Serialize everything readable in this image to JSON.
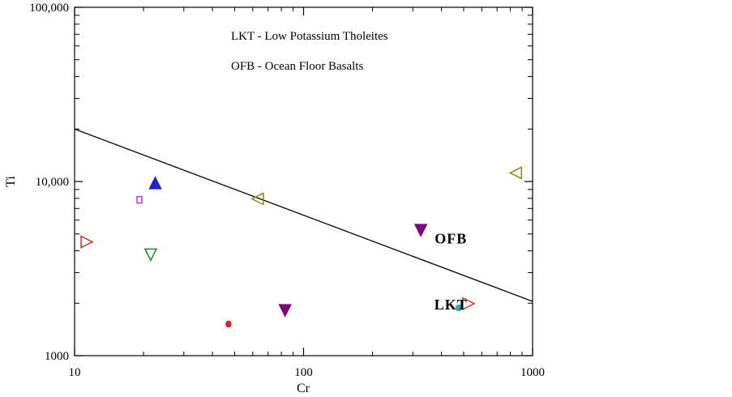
{
  "chart_data": {
    "type": "scatter",
    "title": "",
    "xlabel": "Cr",
    "ylabel": "Ti",
    "xscale": "log",
    "yscale": "log",
    "xlim": [
      10,
      1000
    ],
    "ylim": [
      1000,
      100000
    ],
    "x_ticks": [
      {
        "value": 10,
        "label": "10"
      },
      {
        "value": 100,
        "label": "100"
      },
      {
        "value": 1000,
        "label": "1000"
      }
    ],
    "y_ticks": [
      {
        "value": 1000,
        "label": "1000"
      },
      {
        "value": 10000,
        "label": "10,000"
      },
      {
        "value": 100000,
        "label": "100,000"
      }
    ],
    "legend_lines": [
      "LKT - Low Potassium Tholeites",
      "OFB - Ocean Floor Basalts"
    ],
    "region_labels": [
      {
        "text": "OFB",
        "x": 440,
        "y": 4400
      },
      {
        "text": "LKT",
        "x": 440,
        "y": 1840
      }
    ],
    "boundary_line": {
      "points": [
        [
          10,
          20000
        ],
        [
          1000,
          2050
        ]
      ]
    },
    "points": [
      {
        "x": 11.3,
        "y": 4500,
        "marker": "triangle-right",
        "filled": false,
        "color": "#e03030"
      },
      {
        "x": 19.2,
        "y": 7850,
        "marker": "square",
        "filled": false,
        "color": "#d030d0"
      },
      {
        "x": 21.5,
        "y": 3800,
        "marker": "triangle-down",
        "filled": false,
        "color": "#208a20"
      },
      {
        "x": 22.5,
        "y": 9800,
        "marker": "triangle-up",
        "filled": true,
        "color": "#2020d0"
      },
      {
        "x": 47,
        "y": 1520,
        "marker": "circle",
        "filled": true,
        "color": "#e02020"
      },
      {
        "x": 63,
        "y": 7950,
        "marker": "triangle-left",
        "filled": false,
        "color": "#8a8a10"
      },
      {
        "x": 83,
        "y": 1820,
        "marker": "triangle-down",
        "filled": true,
        "color": "#800080"
      },
      {
        "x": 325,
        "y": 5250,
        "marker": "triangle-down",
        "filled": true,
        "color": "#800080"
      },
      {
        "x": 475,
        "y": 1880,
        "marker": "circle",
        "filled": true,
        "color": "#20b0c0"
      },
      {
        "x": 525,
        "y": 1990,
        "marker": "triangle-right",
        "filled": false,
        "color": "#e03030"
      },
      {
        "x": 845,
        "y": 11200,
        "marker": "triangle-left",
        "filled": false,
        "color": "#8a8a10"
      }
    ]
  }
}
